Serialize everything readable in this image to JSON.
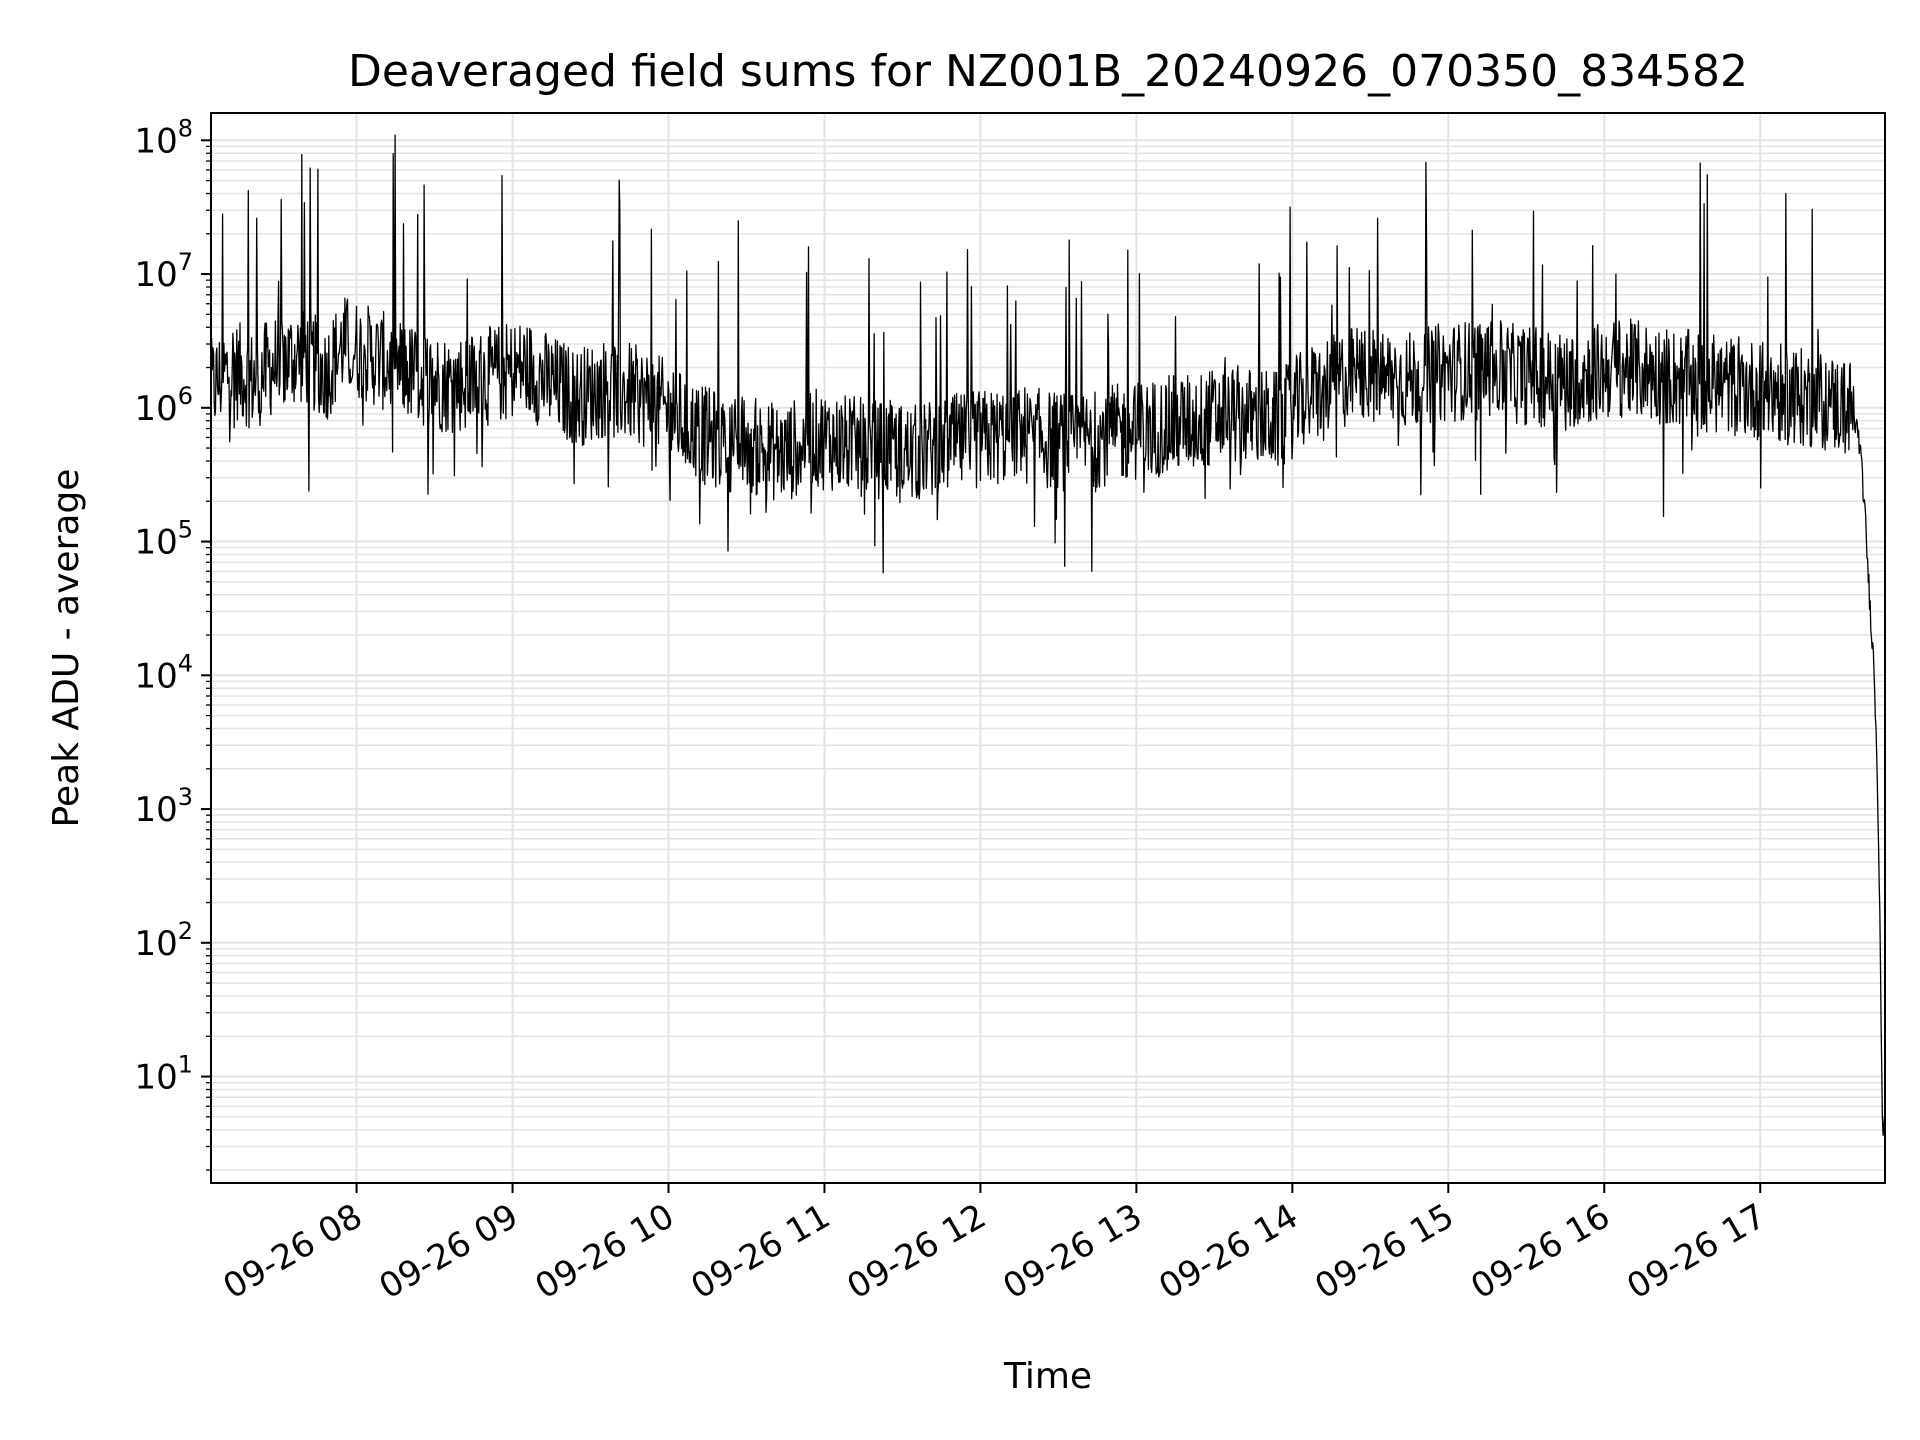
{
  "chart_data": {
    "type": "line",
    "title": "Deaveraged field sums for NZ001B_20240926_070350_834582",
    "xlabel": "Time",
    "ylabel": "Peak ADU - average",
    "yscale": "log",
    "ylim": [
      1.6,
      160000000
    ],
    "xlim": [
      "2024-09-26 07:04",
      "2024-09-26 17:48"
    ],
    "x_tick_labels": [
      "09-26 08",
      "09-26 09",
      "09-26 10",
      "09-26 11",
      "09-26 12",
      "09-26 13",
      "09-26 14",
      "09-26 15",
      "09-26 16",
      "09-26 17"
    ],
    "y_tick_labels": [
      "10^1",
      "10^2",
      "10^3",
      "10^4",
      "10^5",
      "10^6",
      "10^7",
      "10^8"
    ],
    "grid": true,
    "line_color": "#000000",
    "series": [
      {
        "x": [
          "07:04",
          "07:12",
          "07:20",
          "07:30",
          "07:40",
          "07:48",
          "07:55",
          "08:05",
          "08:15",
          "08:25",
          "08:35",
          "08:45",
          "08:55",
          "09:05",
          "09:15",
          "09:25",
          "09:35",
          "09:45",
          "09:55",
          "10:05",
          "10:15",
          "10:25",
          "10:35",
          "10:45",
          "10:55",
          "11:05",
          "11:15",
          "11:25",
          "11:35",
          "11:45",
          "11:55",
          "12:05",
          "12:15",
          "12:25",
          "12:35",
          "12:45",
          "12:55",
          "13:05",
          "13:15",
          "13:25",
          "13:35",
          "13:45",
          "13:55",
          "14:05",
          "14:15",
          "14:25",
          "14:35",
          "14:45",
          "14:55",
          "15:05",
          "15:15",
          "15:25",
          "15:35",
          "15:45",
          "15:55",
          "16:05",
          "16:15",
          "16:25",
          "16:35",
          "16:45",
          "16:55",
          "17:05",
          "17:15",
          "17:25",
          "17:35",
          "17:38",
          "17:40",
          "17:42",
          "17:43",
          "17:44",
          "17:45",
          "17:46",
          "17:47",
          "17:48"
        ],
        "y": [
          1400000,
          2000000,
          1600000,
          2200000,
          2500000,
          1800000,
          3000000,
          2500000,
          2000000,
          1700000,
          1500000,
          1600000,
          1800000,
          2000000,
          1500000,
          1200000,
          1400000,
          1300000,
          1100000,
          800000,
          600000,
          550000,
          500000,
          450000,
          600000,
          550000,
          500000,
          480000,
          450000,
          520000,
          560000,
          600000,
          650000,
          580000,
          550000,
          600000,
          650000,
          700000,
          750000,
          800000,
          900000,
          850000,
          800000,
          1200000,
          1500000,
          1800000,
          1700000,
          1600000,
          1800000,
          1900000,
          2000000,
          1800000,
          1700000,
          1600000,
          1800000,
          2000000,
          1900000,
          1700000,
          1600000,
          1500000,
          1400000,
          1300000,
          1200000,
          1100000,
          1000000,
          600000,
          200000,
          40000,
          20000,
          9000,
          2000,
          200,
          4,
          4
        ]
      }
    ]
  }
}
